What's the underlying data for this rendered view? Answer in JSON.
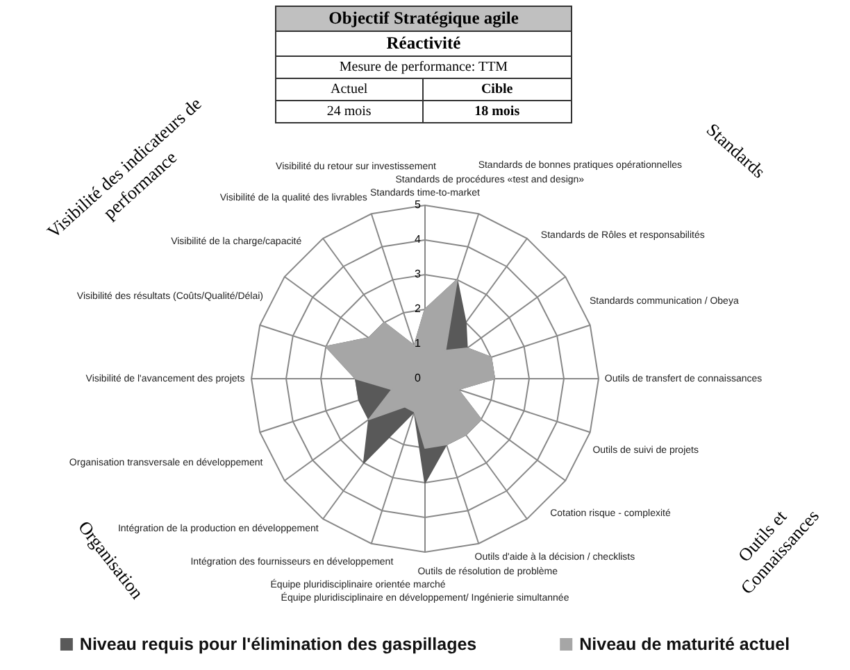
{
  "chart_data": {
    "type": "radar",
    "title": "Objectif Stratégique agile",
    "subtitle": "Réactivité",
    "annotations": [
      "Mesure de performance: TTM",
      "Actuel",
      "Cible",
      "24 mois",
      "18 mois",
      "Visibilité des indicateurs de performance",
      "Standards",
      "Organisation",
      "Outils et Connaissances"
    ],
    "categories": [
      "Standards time-to-market",
      "Standards de procédures «test and design»",
      "Standards de bonnes pratiques opérationnelles",
      "Standards de Rôles et responsabilités",
      "Standards communication / Obeya",
      "Outils de transfert de connaissances",
      "Outils de suivi de projets",
      "Cotation risque - complexité",
      "Outils d'aide à la décision / checklists",
      "Outils de résolution de problème",
      "Équipe pluridisciplinaire en développement/ Ingénierie simultannée",
      "Équipe pluridisciplinaire orientée marché",
      "Intégration des fournisseurs en développement",
      "Intégration de la production en développement",
      "Organisation transversale en développement",
      "Visibilité de l'avancement des projets",
      "Visibilité des résultats (Coûts/Qualité/Délai)",
      "Visibilité de la charge/capacité",
      "Visibilité de la qualité des livrables",
      "Visibilité du retour sur investissement"
    ],
    "series": [
      {
        "name": "Niveau requis pour l'élimination des gaspillages",
        "color": "#595959",
        "values": [
          2,
          3,
          2,
          1.5,
          2,
          2,
          1,
          2,
          2,
          2,
          3,
          1,
          3,
          2,
          2,
          2,
          3,
          2,
          2,
          1
        ]
      },
      {
        "name": "Niveau de maturité actuel",
        "color": "#a6a6a6",
        "values": [
          2,
          3,
          1,
          1.5,
          2,
          2,
          1,
          2,
          2,
          2,
          2,
          1,
          1,
          2,
          1,
          2,
          3,
          2,
          2,
          1
        ]
      }
    ],
    "ylim": [
      0,
      5
    ],
    "yticks": [
      0,
      1,
      2,
      3,
      4,
      5
    ],
    "grid": true,
    "legend": "bottom",
    "marker": "none"
  }
}
